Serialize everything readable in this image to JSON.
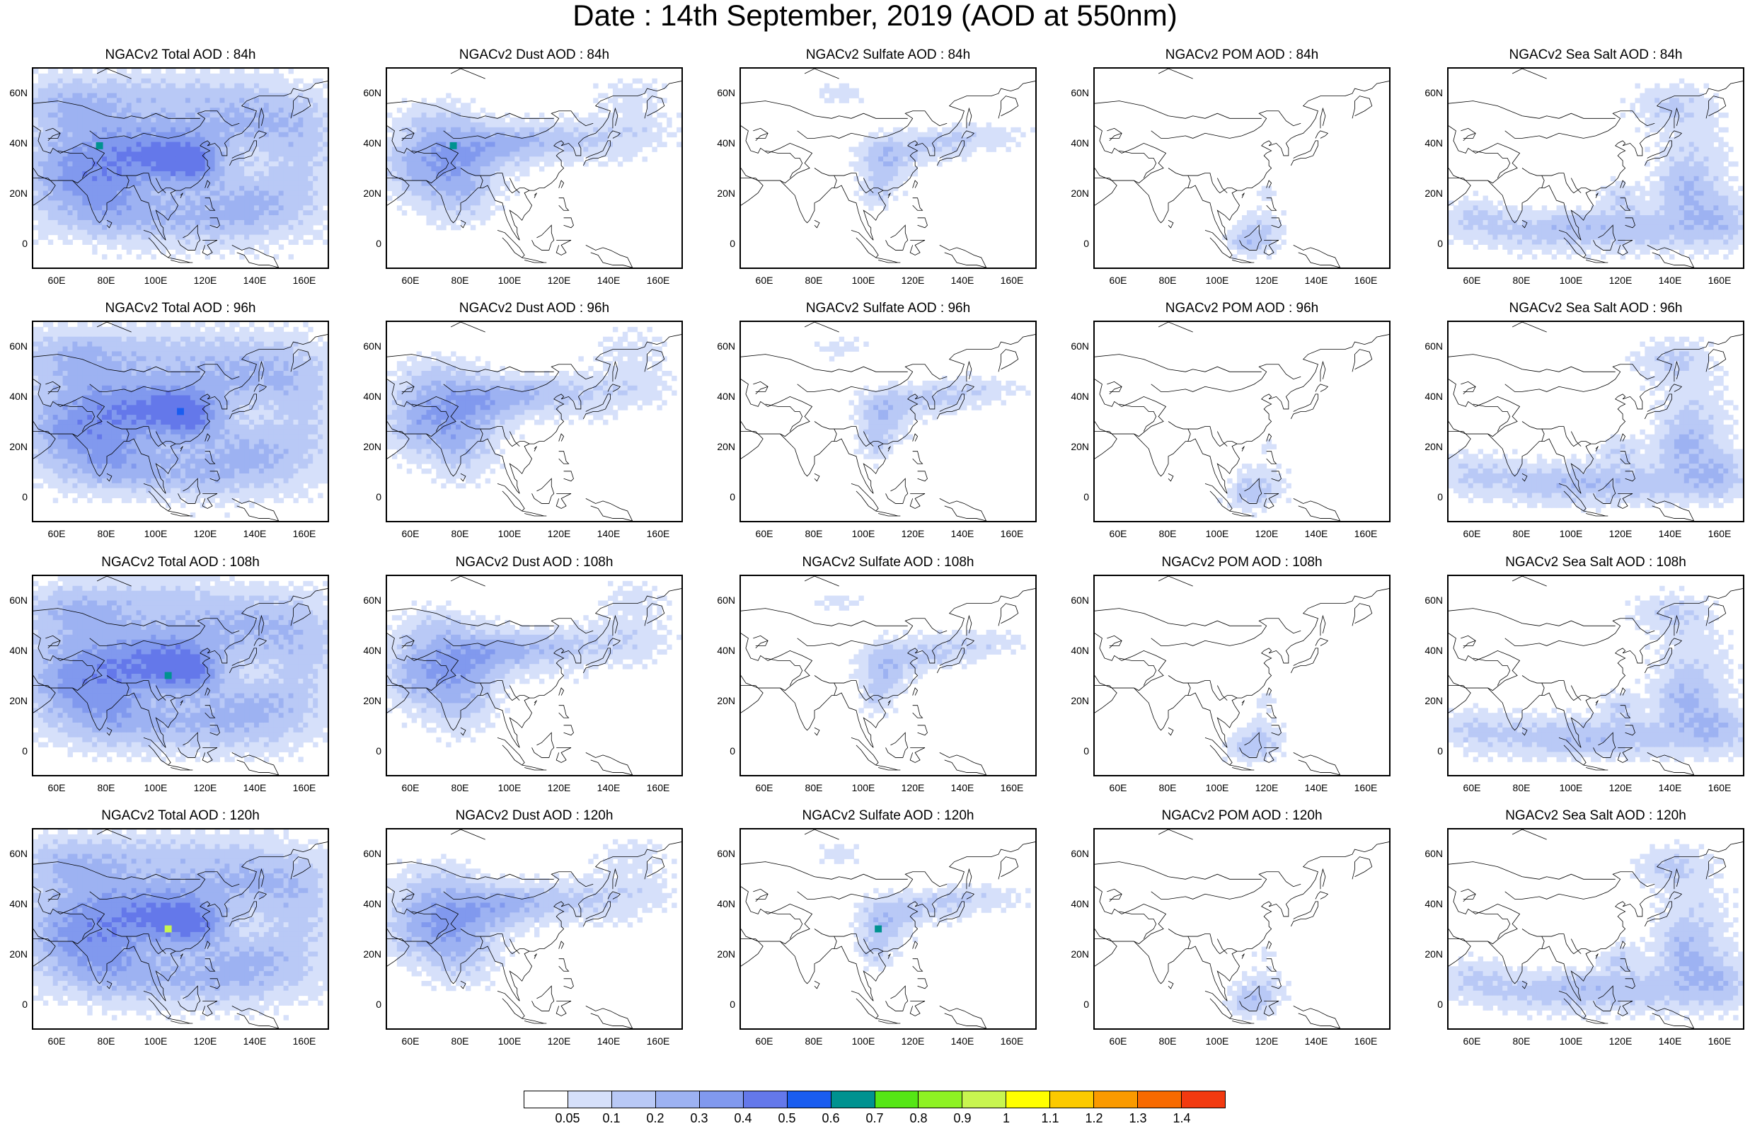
{
  "title": "Date : 14th September, 2019 (AOD at 550nm)",
  "panels": [
    [
      "NGACv2 Total AOD : 84h",
      "NGACv2 Dust AOD : 84h",
      "NGACv2 Sulfate AOD : 84h",
      "NGACv2 POM AOD : 84h",
      "NGACv2 Sea Salt AOD : 84h"
    ],
    [
      "NGACv2 Total AOD : 96h",
      "NGACv2 Dust AOD : 96h",
      "NGACv2 Sulfate AOD : 96h",
      "NGACv2 POM AOD : 96h",
      "NGACv2 Sea Salt AOD : 96h"
    ],
    [
      "NGACv2 Total AOD : 108h",
      "NGACv2 Dust AOD : 108h",
      "NGACv2 Sulfate AOD : 108h",
      "NGACv2 POM AOD : 108h",
      "NGACv2 Sea Salt AOD : 108h"
    ],
    [
      "NGACv2 Total AOD : 120h",
      "NGACv2 Dust AOD : 120h",
      "NGACv2 Sulfate AOD : 120h",
      "NGACv2 POM AOD : 120h",
      "NGACv2 Sea Salt  AOD : 120h"
    ]
  ],
  "lat_ticks": [
    "60N",
    "40N",
    "20N",
    "0"
  ],
  "lon_ticks": [
    "60E",
    "80E",
    "100E",
    "120E",
    "140E",
    "160E"
  ],
  "map_extent": {
    "lon": [
      50,
      170
    ],
    "lat": [
      -10,
      70
    ]
  },
  "colorbar": {
    "colors": [
      "#ffffff",
      "#d6e0fa",
      "#b9c9f6",
      "#9db2f2",
      "#8199ee",
      "#6478ea",
      "#1a5df0",
      "#009290",
      "#55e615",
      "#8ef224",
      "#c8f550",
      "#ffff00",
      "#fcca00",
      "#fa9a00",
      "#f86a00",
      "#f23a10"
    ],
    "labels": [
      "0.05",
      "0.1",
      "0.2",
      "0.3",
      "0.4",
      "0.5",
      "0.6",
      "0.7",
      "0.8",
      "0.9",
      "1",
      "1.1",
      "1.2",
      "1.3",
      "1.4"
    ]
  }
}
